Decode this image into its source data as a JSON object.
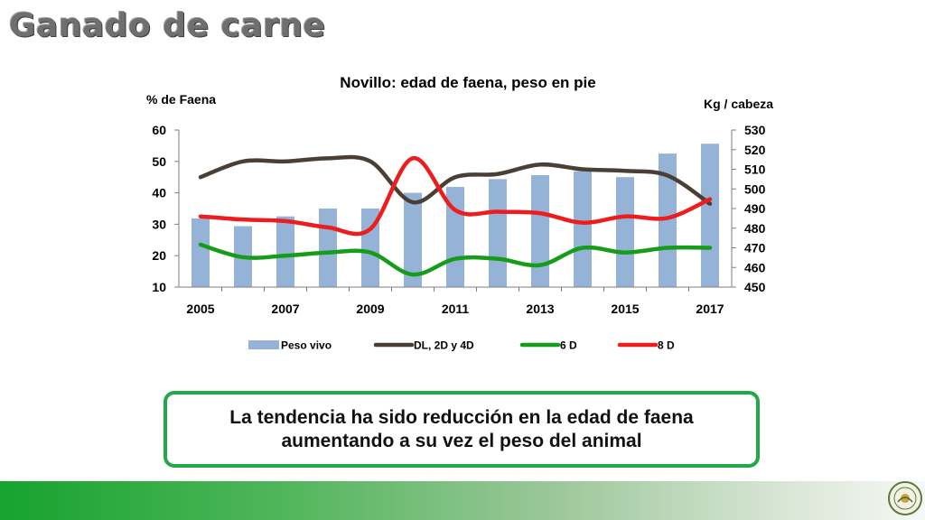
{
  "slide": {
    "title": "Ganado de carne",
    "callout_text": "La tendencia ha sido reducción en la edad de faena aumentando a su vez el peso del animal"
  },
  "colors": {
    "peso_vivo": "#95b3d7",
    "dl_2d_4d": "#4a3f35",
    "six_d": "#159c18",
    "eight_d": "#ee1c1c",
    "callout_border": "#22a84a",
    "footer_green": "#16a32e"
  },
  "chart_data": {
    "type": "bar",
    "title": "Novillo: edad de faena, peso en pie",
    "ylabel_left": "% de Faena",
    "ylabel_right": "Kg / cabeza",
    "x": [
      2005,
      2006,
      2007,
      2008,
      2009,
      2010,
      2011,
      2012,
      2013,
      2014,
      2015,
      2016,
      2017
    ],
    "x_tick_labels": [
      "2005",
      "2007",
      "2009",
      "2011",
      "2013",
      "2015",
      "2017"
    ],
    "y_left": {
      "lim": [
        10,
        60
      ],
      "ticks": [
        10,
        20,
        30,
        40,
        50,
        60
      ]
    },
    "y_right": {
      "lim": [
        450,
        530
      ],
      "ticks": [
        450,
        460,
        470,
        480,
        490,
        500,
        510,
        520,
        530
      ]
    },
    "grid": false,
    "legend_position": "bottom",
    "series": [
      {
        "name": "Peso vivo",
        "kind": "bar",
        "axis": "right",
        "values": [
          485,
          481,
          486,
          490,
          490,
          498,
          501,
          505,
          507,
          509,
          506,
          518,
          523
        ]
      },
      {
        "name": "DL, 2D y 4D",
        "kind": "line",
        "axis": "left",
        "values": [
          45,
          50,
          50,
          51,
          50,
          37,
          45,
          46,
          49,
          47.5,
          47,
          45.5,
          36.5
        ]
      },
      {
        "name": "6 D",
        "kind": "line",
        "axis": "left",
        "values": [
          23.5,
          19.5,
          20,
          21,
          21,
          14,
          19,
          19,
          17,
          22.5,
          21,
          22.5,
          22.5
        ]
      },
      {
        "name": "8 D",
        "kind": "line",
        "axis": "left",
        "values": [
          32.5,
          31.5,
          31,
          29,
          28.5,
          51,
          34.5,
          34,
          33.5,
          30.5,
          32.5,
          32,
          38
        ]
      }
    ]
  }
}
